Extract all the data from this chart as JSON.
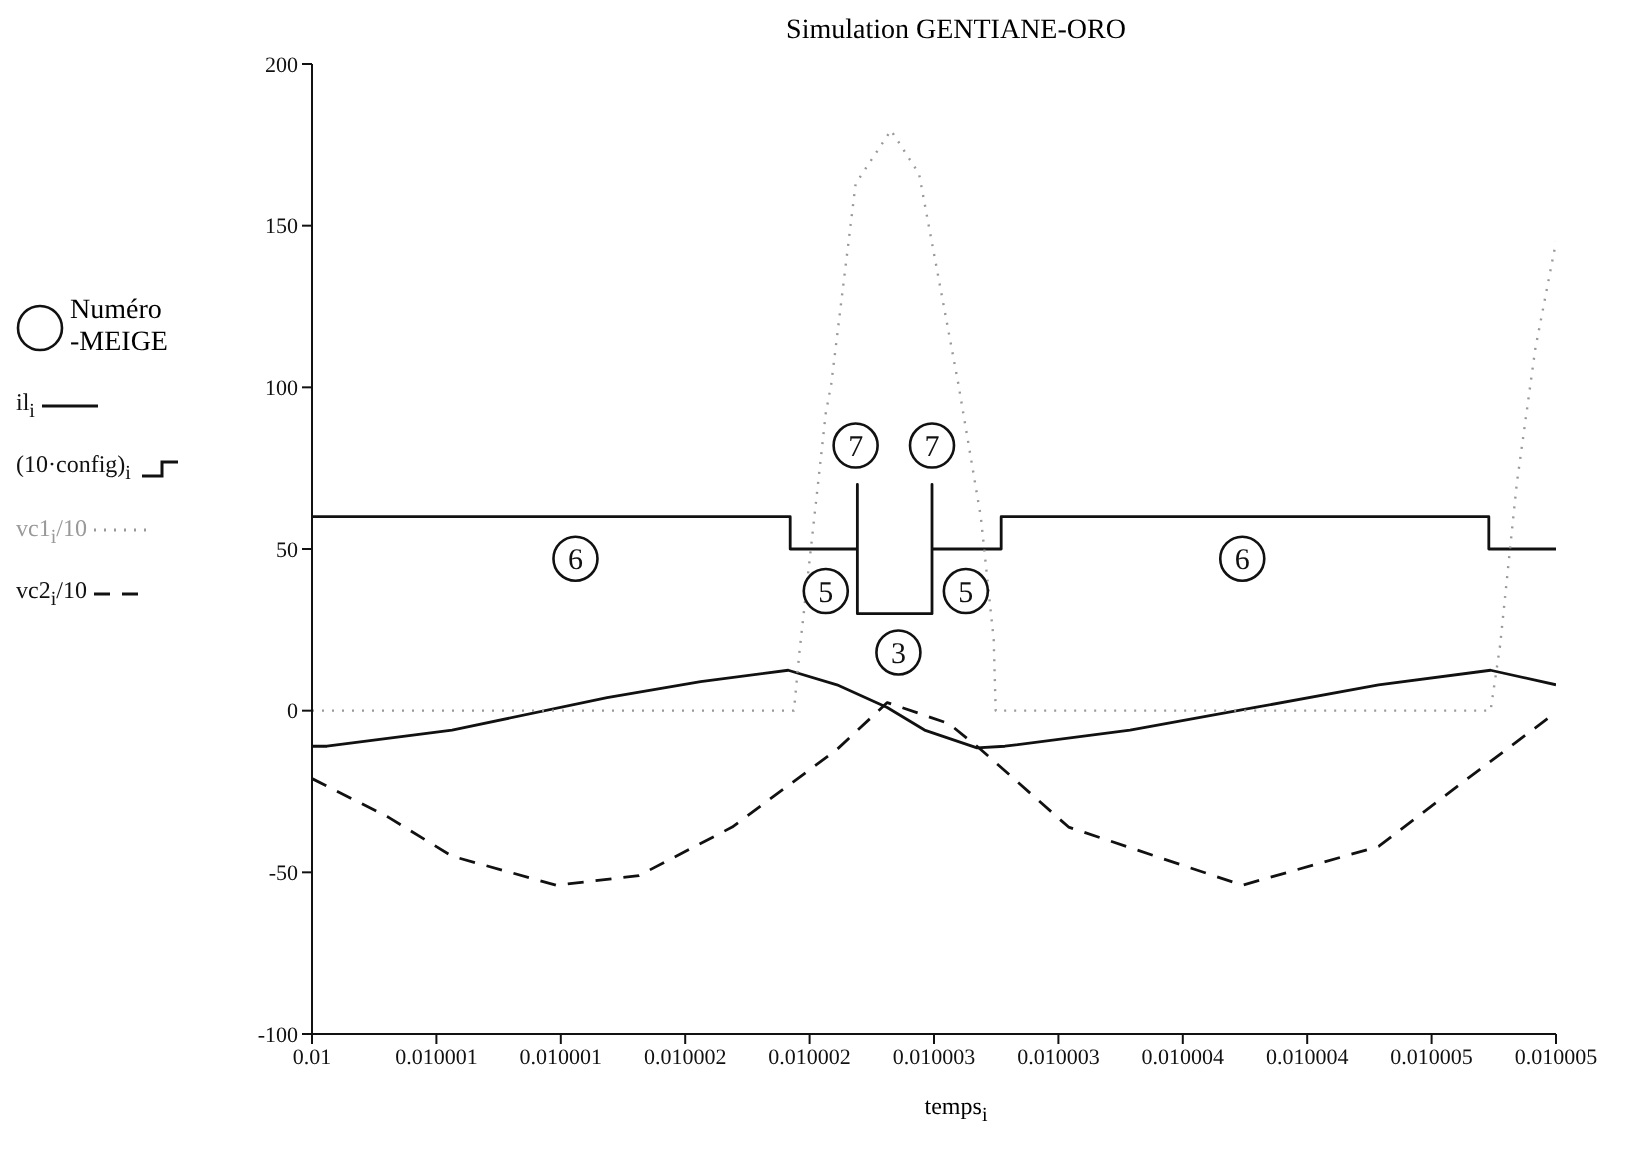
{
  "chart_data": {
    "type": "line",
    "title": "Simulation GENTIANE-ORO",
    "xlabel": "temps$_{i}$",
    "legend": "left",
    "legend_title": "Numéro -MEIGE",
    "xlim": [
      0.01,
      0.010005
    ],
    "xticks": [
      {
        "value": 0.01,
        "label": "0.01"
      },
      {
        "value": 0.0100005,
        "label": "0.010001"
      },
      {
        "value": 0.010001,
        "label": "0.010001"
      },
      {
        "value": 0.0100015,
        "label": "0.010002"
      },
      {
        "value": 0.010002,
        "label": "0.010002"
      },
      {
        "value": 0.0100025,
        "label": "0.010003"
      },
      {
        "value": 0.010003,
        "label": "0.010003"
      },
      {
        "value": 0.0100035,
        "label": "0.010004"
      },
      {
        "value": 0.010004,
        "label": "0.010004"
      },
      {
        "value": 0.0100045,
        "label": "0.010005"
      },
      {
        "value": 0.010005,
        "label": "0.010005"
      }
    ],
    "ylim": [
      -100,
      200
    ],
    "yticks": [
      -100,
      -50,
      0,
      50,
      100,
      150,
      200
    ],
    "series": [
      {
        "name": "il$_{i}$",
        "color": "#111111",
        "line_style": "solid",
        "x": [
          0.01,
          0.01000006,
          0.010000563,
          0.010001186,
          0.010001562,
          0.010001914,
          0.01000211,
          0.010002312,
          0.010002462,
          0.010002673,
          0.010002785,
          0.010003288,
          0.010003791,
          0.010004287,
          0.010004737,
          0.010005
        ],
        "values": [
          -11,
          -11,
          -6,
          4,
          9,
          12.5,
          8,
          1,
          -6,
          -11.5,
          -11,
          -6,
          1,
          8,
          12.5,
          8
        ]
      },
      {
        "name": "(10·config)$_{i}$",
        "type": "step",
        "color": "#111111",
        "line_style": "solid",
        "x": [
          0.01,
          0.010001922,
          0.010002192,
          0.010002192,
          0.010002492,
          0.010002492,
          0.01000277,
          0.01000473,
          0.010005
        ],
        "values": [
          60,
          50,
          70,
          30,
          70,
          50,
          60,
          50,
          50
        ]
      },
      {
        "name": "vc1$_{i}$/10",
        "color": "#999999",
        "line_style": "dotted",
        "x": [
          0.01,
          0.010001937,
          0.010001959,
          0.010002065,
          0.010002087,
          0.010002185,
          0.010002327,
          0.01000244,
          0.010002598,
          0.010002688,
          0.01000274,
          0.010002748,
          0.010004737,
          0.010004775,
          0.010004842,
          0.010004917,
          0.010005
        ],
        "values": [
          0,
          0,
          18,
          92,
          101,
          163,
          179.5,
          166,
          101,
          60,
          22,
          0,
          0,
          20,
          70,
          112,
          145
        ]
      },
      {
        "name": "vc2$_{i}$/10",
        "color": "#111111",
        "line_style": "dashed",
        "x": [
          0.01,
          0.010000308,
          0.010000563,
          0.010000983,
          0.010001314,
          0.010001689,
          0.01000211,
          0.010002312,
          0.01000256,
          0.010002688,
          0.010003041,
          0.010003739,
          0.010004287,
          0.010004662,
          0.010005
        ],
        "values": [
          -21,
          -33,
          -45,
          -54,
          -51,
          -36,
          -12,
          2.5,
          -4,
          -12,
          -36,
          -54,
          -42,
          -20,
          -0.5
        ]
      }
    ],
    "annotations": [
      {
        "text": "6",
        "x": 0.010001059,
        "y": 47
      },
      {
        "text": "5",
        "x": 0.010002065,
        "y": 37
      },
      {
        "text": "7",
        "x": 0.010002185,
        "y": 82
      },
      {
        "text": "3",
        "x": 0.010002357,
        "y": 18
      },
      {
        "text": "7",
        "x": 0.010002492,
        "y": 82
      },
      {
        "text": "5",
        "x": 0.010002628,
        "y": 37
      },
      {
        "text": "6",
        "x": 0.010003739,
        "y": 47
      }
    ]
  }
}
